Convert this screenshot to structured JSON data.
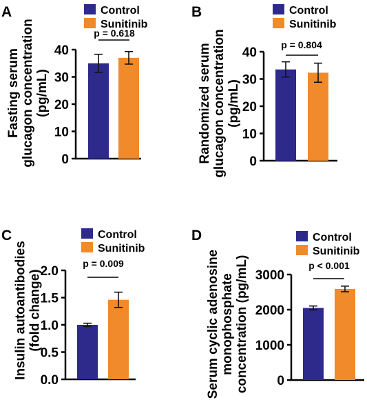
{
  "colors": {
    "control": "#2e2a8c",
    "sunitinib": "#f08a2a"
  },
  "legend": {
    "control": "Control",
    "sunitinib": "Sunitinib"
  },
  "chart_data": [
    {
      "panel": "A",
      "type": "bar",
      "categories": [
        "Control",
        "Sunitinib"
      ],
      "values": [
        35.0,
        37.0
      ],
      "errors": [
        3.3,
        2.3
      ],
      "ylabel": [
        "Fasting serum",
        "glucagon concentration",
        "(pg/mL)"
      ],
      "ylim": [
        0,
        40
      ],
      "yticks": [
        "0",
        "10",
        "20",
        "30",
        "40"
      ],
      "annotation": "p = 0.618",
      "legend": "top-right",
      "grid": false
    },
    {
      "panel": "B",
      "type": "bar",
      "categories": [
        "Control",
        "Sunitinib"
      ],
      "values": [
        33.5,
        32.3
      ],
      "errors": [
        2.8,
        3.5
      ],
      "ylabel": [
        "Randomized serum",
        "glucagon concentration",
        "(pg/mL)"
      ],
      "ylim": [
        0,
        40
      ],
      "yticks": [
        "0",
        "10",
        "20",
        "30",
        "40"
      ],
      "annotation": "p = 0.804",
      "legend": "top-right",
      "grid": false
    },
    {
      "panel": "C",
      "type": "bar",
      "categories": [
        "Control",
        "Sunitinib"
      ],
      "values": [
        1.0,
        1.46
      ],
      "errors": [
        0.03,
        0.14
      ],
      "ylabel": [
        "Insulin autoantibodies",
        "(fold change)"
      ],
      "ylim": [
        0,
        2.0
      ],
      "yticks": [
        "0.0",
        "0.5",
        "1.0",
        "1.5",
        "2.0"
      ],
      "annotation": "p = 0.009",
      "legend": "top-right",
      "grid": false
    },
    {
      "panel": "D",
      "type": "bar",
      "categories": [
        "Control",
        "Sunitinib"
      ],
      "values": [
        2050,
        2590
      ],
      "errors": [
        55,
        80
      ],
      "ylabel": [
        "Serum cyclic adenosine",
        "monophosphate",
        "concentration (pg/mL)"
      ],
      "ylim": [
        0,
        3000
      ],
      "yticks": [
        "0",
        "1000",
        "2000",
        "3000"
      ],
      "annotation": "p < 0.001",
      "legend": "top-right",
      "grid": false
    }
  ]
}
